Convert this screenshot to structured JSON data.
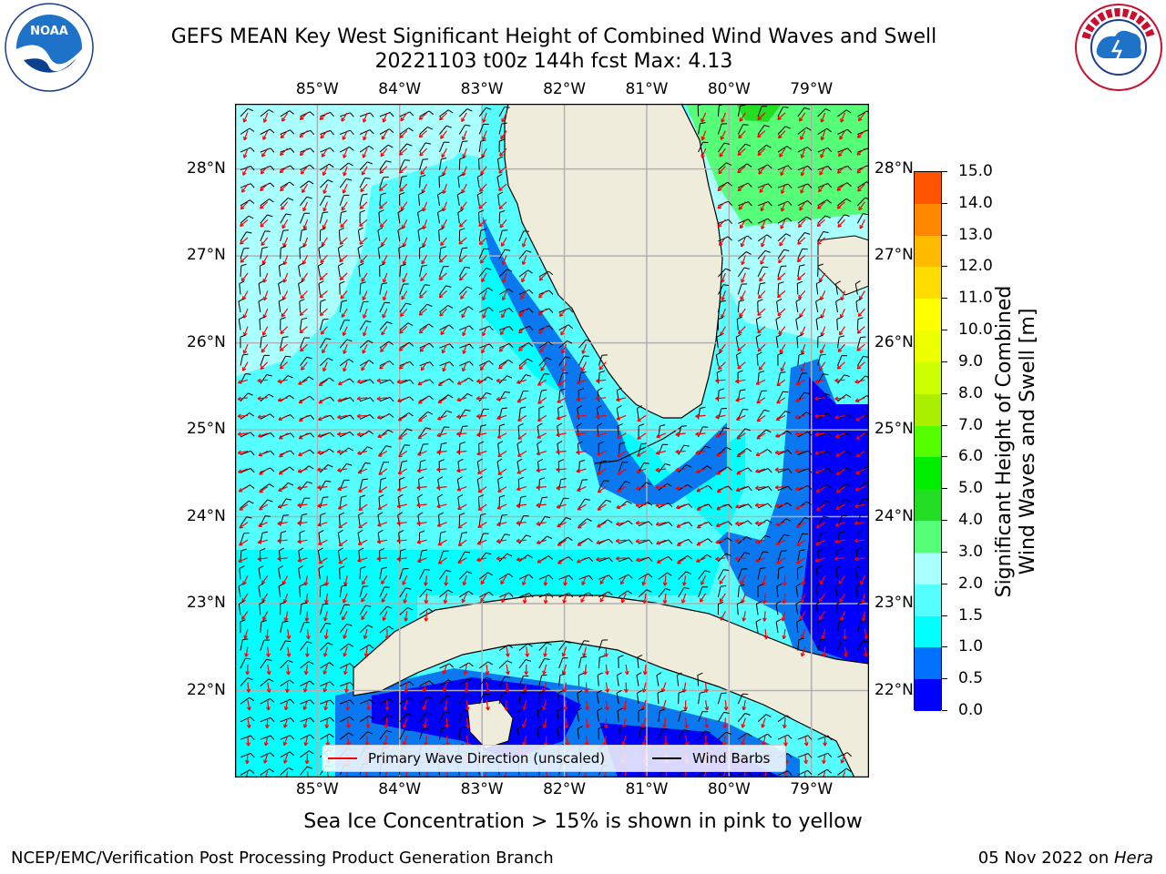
{
  "title": {
    "line1": "GEFS MEAN Key West Significant Height of Combined Wind Waves and Swell",
    "line2": "20221103 t00z 144h fcst   Max: 4.13"
  },
  "logos": {
    "left": "NOAA",
    "left_ring": "NATIONAL OCEANIC AND ATMOSPHERIC ADMINISTRATION · U.S. DEPARTMENT OF COMMERCE",
    "right": "NATIONAL WEATHER SERVICE"
  },
  "map": {
    "lon_labels": [
      "85°W",
      "84°W",
      "83°W",
      "82°W",
      "81°W",
      "80°W",
      "79°W"
    ],
    "lat_labels": [
      "28°N",
      "27°N",
      "26°N",
      "25°N",
      "24°N",
      "23°N",
      "22°N"
    ],
    "lon_range": [
      -86.0,
      -78.3
    ],
    "lat_range": [
      21.0,
      28.75
    ],
    "colors": {
      "land": "#efecdc",
      "coast": "#000000",
      "grid": "#b0b0b0",
      "arrow": "#ff0000",
      "barb": "#000000"
    }
  },
  "legend": {
    "primary_wave": "Primary Wave Direction (unscaled)",
    "wind_barbs": "Wind Barbs"
  },
  "colorbar": {
    "label_line1": "Significant Height of Combined",
    "label_line2": "Wind Waves and Swell [m]",
    "ticks": [
      "15.0",
      "14.0",
      "13.0",
      "12.0",
      "11.0",
      "10.0",
      "9.0",
      "8.0",
      "7.0",
      "6.0",
      "5.0",
      "4.0",
      "3.0",
      "2.0",
      "1.5",
      "1.0",
      "0.5",
      "0.0"
    ],
    "colors_bottom_to_top": [
      "#0000ff",
      "#0072ff",
      "#00ffff",
      "#55ffff",
      "#aaffff",
      "#55ff77",
      "#22dd22",
      "#00ee00",
      "#55ff00",
      "#aaee00",
      "#ccff00",
      "#eeff00",
      "#ffff00",
      "#ffdd00",
      "#ffbb00",
      "#ff8800",
      "#ff5500",
      "#ff2200",
      "#ff0000"
    ]
  },
  "footer": {
    "caption": "Sea Ice Concentration > 15% is shown in pink to yellow",
    "left": "NCEP/EMC/Verification Post Processing Product Generation Branch",
    "right_date": "05 Nov 2022 on ",
    "right_host": "Hera"
  }
}
